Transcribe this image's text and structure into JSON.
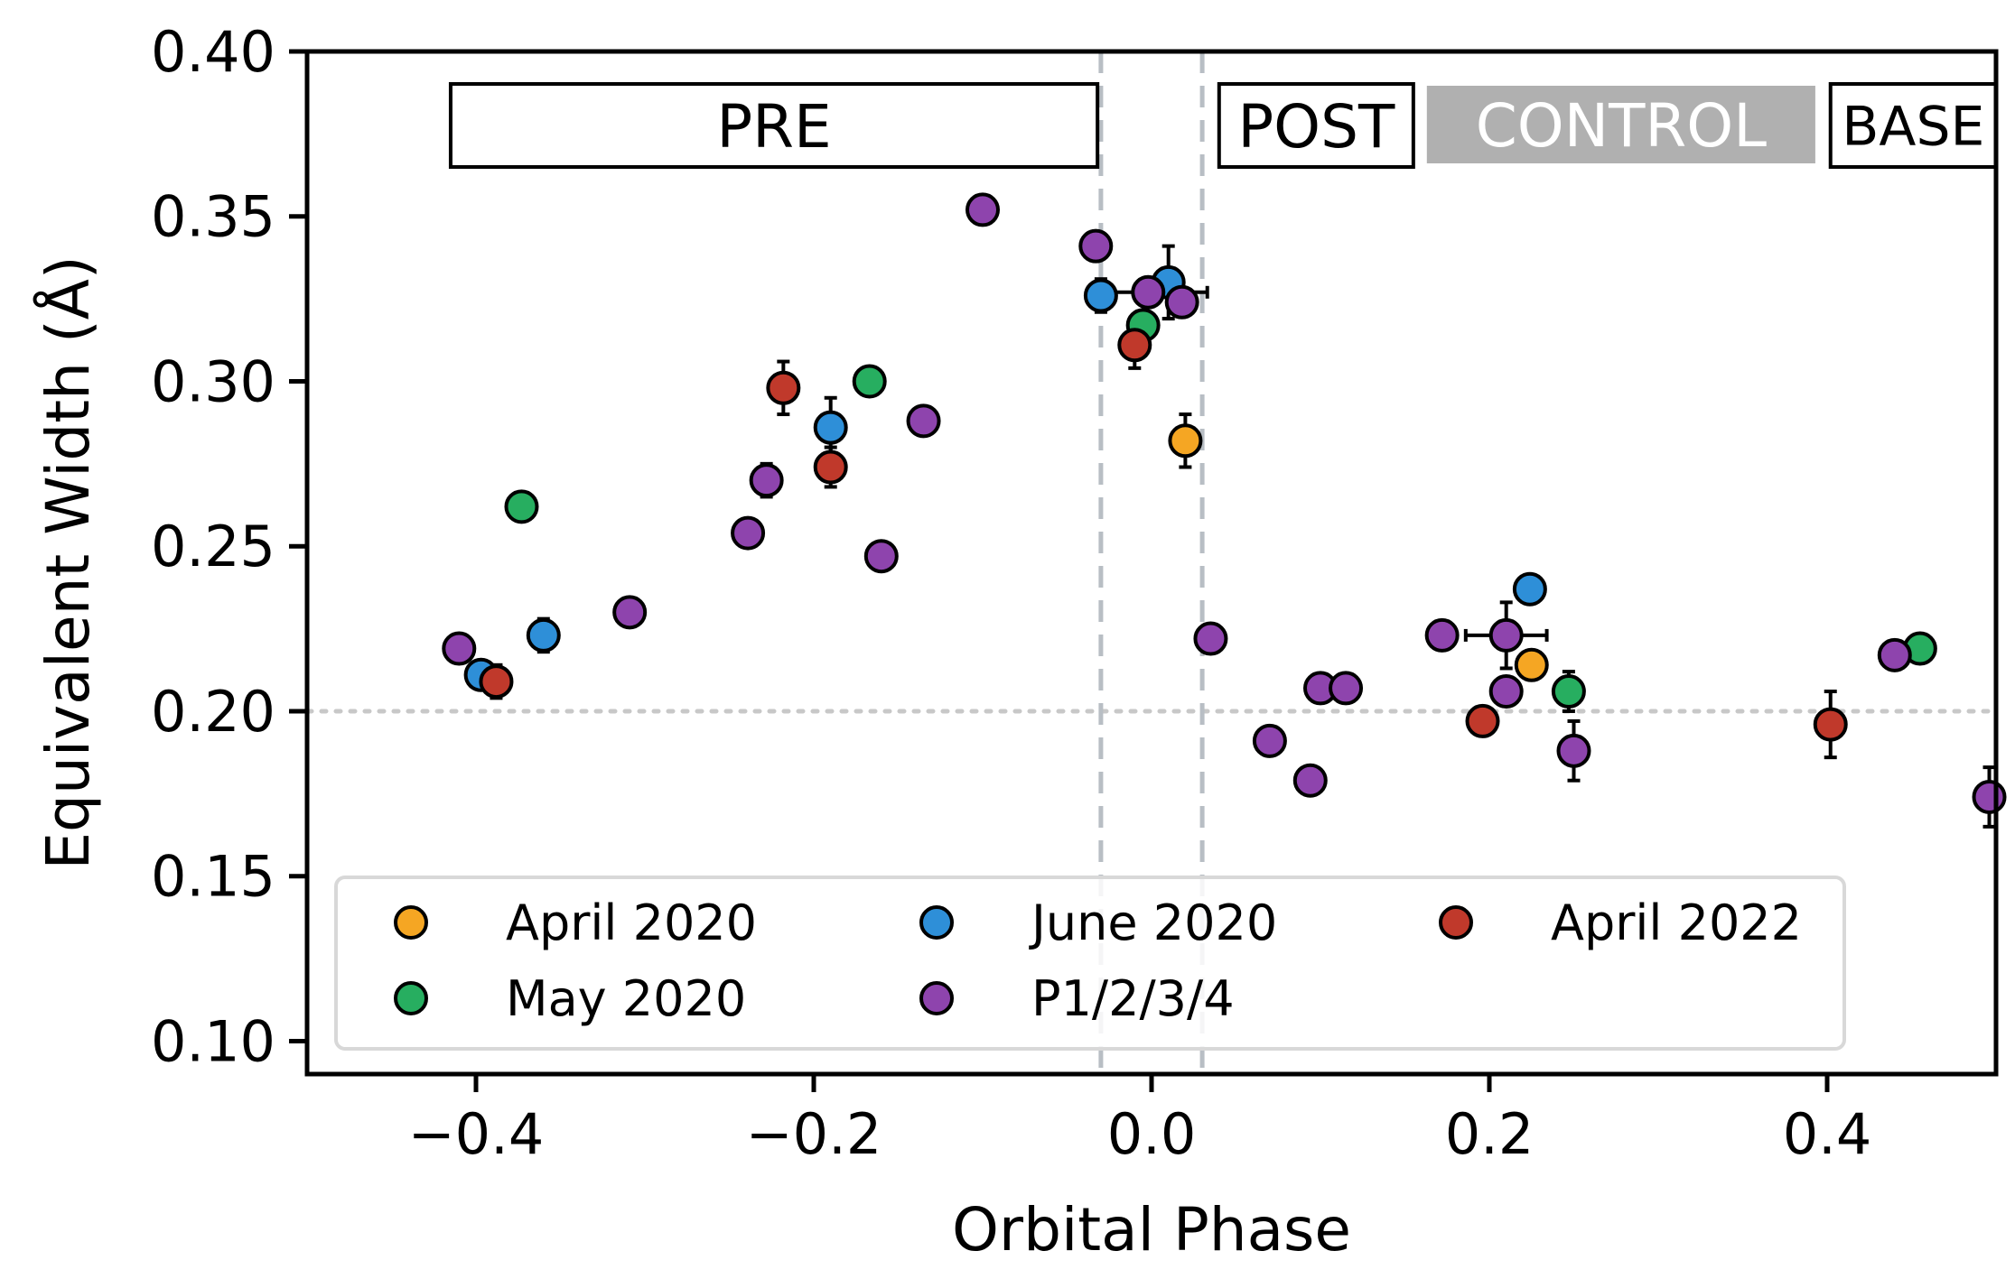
{
  "chart_data": {
    "type": "scatter",
    "xlabel": "Orbital Phase",
    "ylabel": "Equivalent Width (Å)",
    "xlim": [
      -0.5,
      0.5
    ],
    "ylim": [
      0.09,
      0.4
    ],
    "xticks": [
      -0.4,
      -0.2,
      0.0,
      0.2,
      0.4
    ],
    "xtick_labels": [
      "−0.4",
      "−0.2",
      "0.0",
      "0.2",
      "0.4"
    ],
    "yticks": [
      0.1,
      0.15,
      0.2,
      0.25,
      0.3,
      0.35,
      0.4
    ],
    "ytick_labels": [
      "0.10",
      "0.15",
      "0.20",
      "0.25",
      "0.30",
      "0.35",
      "0.40"
    ],
    "grid": false,
    "legend_position": "lower-left",
    "reference_lines": {
      "horizontal_dotted_y": 0.2,
      "vertical_dashed_x": [
        -0.03,
        0.03
      ]
    },
    "region_labels": [
      {
        "text": "PRE",
        "x_range": [
          -0.415,
          -0.032
        ],
        "style": "outlined"
      },
      {
        "text": "POST",
        "x_range": [
          0.04,
          0.155
        ],
        "style": "outlined"
      },
      {
        "text": "CONTROL",
        "x_range": [
          0.163,
          0.393
        ],
        "style": "filled",
        "color": "#b0b0b0"
      },
      {
        "text": "BASE",
        "x_range": [
          0.402,
          0.5
        ],
        "style": "outlined"
      }
    ],
    "series": [
      {
        "name": "April 2020",
        "color": "#f5a623",
        "points": [
          {
            "x": 0.02,
            "y": 0.282,
            "yerr": 0.008
          },
          {
            "x": 0.225,
            "y": 0.214
          }
        ]
      },
      {
        "name": "May 2020",
        "color": "#27ae60",
        "points": [
          {
            "x": -0.373,
            "y": 0.262
          },
          {
            "x": -0.167,
            "y": 0.3
          },
          {
            "x": -0.005,
            "y": 0.317
          },
          {
            "x": 0.247,
            "y": 0.206,
            "yerr": 0.006
          },
          {
            "x": 0.455,
            "y": 0.219
          }
        ]
      },
      {
        "name": "June 2020",
        "color": "#2e8fd8",
        "points": [
          {
            "x": -0.397,
            "y": 0.211
          },
          {
            "x": -0.36,
            "y": 0.223,
            "yerr": 0.005
          },
          {
            "x": -0.19,
            "y": 0.286,
            "yerr": 0.009
          },
          {
            "x": -0.03,
            "y": 0.326,
            "yerr": 0.005
          },
          {
            "x": 0.01,
            "y": 0.33,
            "yerr": 0.011
          },
          {
            "x": 0.224,
            "y": 0.237
          }
        ]
      },
      {
        "name": "P1/2/3/4",
        "color": "#8e44ad",
        "points": [
          {
            "x": -0.41,
            "y": 0.219
          },
          {
            "x": -0.309,
            "y": 0.23
          },
          {
            "x": -0.239,
            "y": 0.254
          },
          {
            "x": -0.228,
            "y": 0.27,
            "yerr": 0.005
          },
          {
            "x": -0.16,
            "y": 0.247
          },
          {
            "x": -0.135,
            "y": 0.288
          },
          {
            "x": -0.1,
            "y": 0.352
          },
          {
            "x": -0.033,
            "y": 0.341
          },
          {
            "x": -0.002,
            "y": 0.327,
            "xerr": 0.035
          },
          {
            "x": 0.018,
            "y": 0.324
          },
          {
            "x": 0.035,
            "y": 0.222
          },
          {
            "x": 0.07,
            "y": 0.191
          },
          {
            "x": 0.094,
            "y": 0.179
          },
          {
            "x": 0.1,
            "y": 0.207
          },
          {
            "x": 0.115,
            "y": 0.207
          },
          {
            "x": 0.172,
            "y": 0.223
          },
          {
            "x": 0.21,
            "y": 0.223,
            "xerr": 0.024,
            "yerr": 0.01
          },
          {
            "x": 0.21,
            "y": 0.206
          },
          {
            "x": 0.25,
            "y": 0.188,
            "yerr": 0.009
          },
          {
            "x": 0.44,
            "y": 0.217
          },
          {
            "x": 0.496,
            "y": 0.174,
            "yerr": 0.009
          }
        ]
      },
      {
        "name": "April 2022",
        "color": "#c0392b",
        "points": [
          {
            "x": -0.388,
            "y": 0.209,
            "yerr": 0.005
          },
          {
            "x": -0.218,
            "y": 0.298,
            "yerr": 0.008
          },
          {
            "x": -0.19,
            "y": 0.274,
            "yerr": 0.006
          },
          {
            "x": -0.01,
            "y": 0.311,
            "yerr": 0.007
          },
          {
            "x": 0.196,
            "y": 0.197
          },
          {
            "x": 0.402,
            "y": 0.196,
            "yerr": 0.01
          }
        ]
      }
    ]
  },
  "legend": {
    "items": [
      "April 2020",
      "June 2020",
      "April 2022",
      "May 2020",
      "P1/2/3/4"
    ]
  }
}
